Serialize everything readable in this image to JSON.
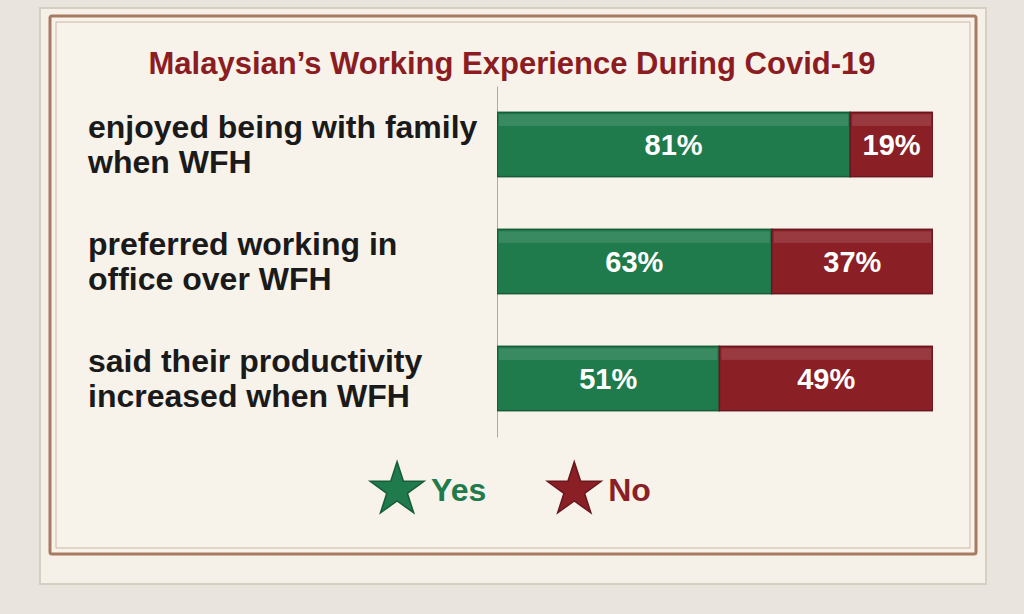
{
  "chart_data": {
    "type": "bar",
    "orientation": "horizontal",
    "stacked": true,
    "title": "Malaysian’s Working Experience During Covid-19",
    "categories": [
      "enjoyed being with family when WFH",
      "preferred working in office over WFH",
      "said their productivity increased when WFH"
    ],
    "series": [
      {
        "name": "Yes",
        "color": "#1f7a4c",
        "values": [
          81,
          63,
          51
        ],
        "value_labels": [
          "81%",
          "63%",
          "51%"
        ]
      },
      {
        "name": "No",
        "color": "#8a1f26",
        "values": [
          19,
          37,
          49
        ],
        "value_labels": [
          "19%",
          "37%",
          "49%"
        ]
      }
    ],
    "xlim": [
      0,
      100
    ],
    "data_labels": true,
    "tick_labels": "y",
    "legend": "bottom"
  }
}
